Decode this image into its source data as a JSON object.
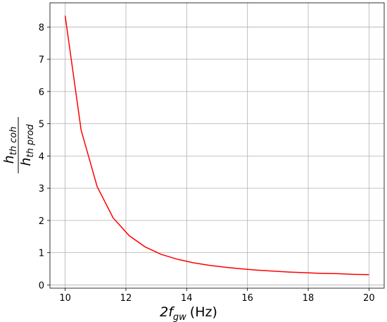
{
  "chart_data": {
    "type": "line",
    "x": [
      10,
      10.526,
      11.053,
      11.579,
      12.105,
      12.632,
      13.158,
      13.684,
      14.211,
      14.737,
      15.263,
      15.789,
      16.316,
      16.842,
      17.368,
      17.895,
      18.421,
      18.947,
      19.474,
      20
    ],
    "series": [
      {
        "color": "#ff0000",
        "values": [
          8.35,
          4.8,
          3.05,
          2.08,
          1.53,
          1.18,
          0.95,
          0.8,
          0.69,
          0.61,
          0.55,
          0.5,
          0.46,
          0.43,
          0.4,
          0.38,
          0.36,
          0.35,
          0.33,
          0.32
        ]
      }
    ],
    "xlim": [
      9.5,
      20.5
    ],
    "xticks": [
      10,
      12,
      14,
      16,
      18,
      20
    ],
    "ylim": [
      -0.1,
      8.75
    ],
    "yticks": [
      0,
      1,
      2,
      3,
      4,
      5,
      6,
      7,
      8
    ],
    "grid": true,
    "xlabel": {
      "main": "2f",
      "subscript": "gw",
      "suffix": "(Hz)"
    },
    "ylabel": {
      "numerator": "h",
      "numerator_subscript": "th coh",
      "denominator": "h",
      "denominator_subscript": "th prod"
    }
  }
}
